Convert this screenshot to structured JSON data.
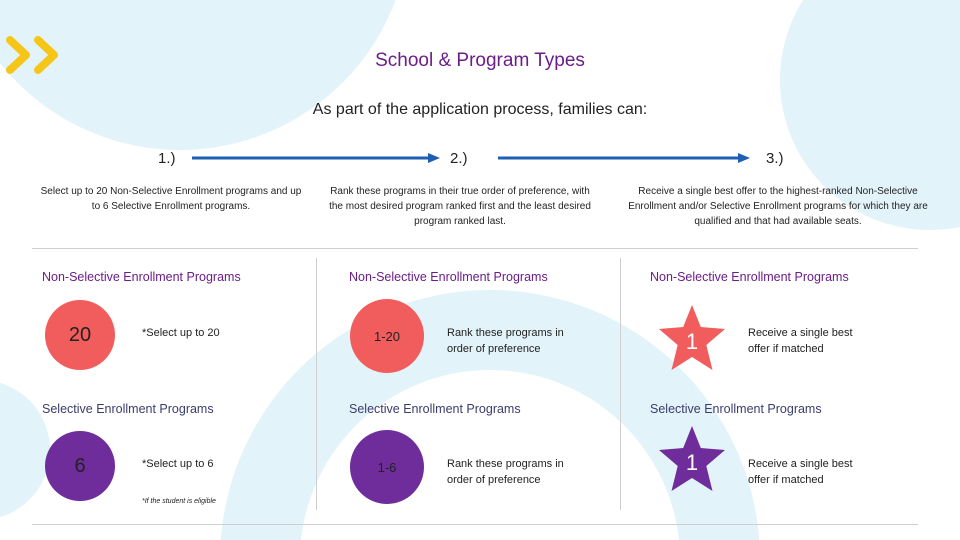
{
  "header": {
    "title": "School & Program Types",
    "subtitle": "As part of the application process, families can:"
  },
  "colors": {
    "purple": "#6b1d8a",
    "red": "#f15c5c",
    "circle_purple": "#6f2c9b",
    "arrow_blue": "#1e5fb4",
    "logo_yellow": "#f5c518",
    "bg_blue": "#e3f3fa"
  },
  "steps": [
    {
      "label": "1.)",
      "description": "Select up to 20 Non-Selective Enrollment programs and up to 6 Selective Enrollment programs."
    },
    {
      "label": "2.)",
      "description": "Rank these programs in their true order of preference, with the most desired program ranked first and the least desired program ranked last."
    },
    {
      "label": "3.)",
      "description": "Receive a single best offer to the highest-ranked Non-Selective Enrollment and/or Selective Enrollment programs for which they are qualified and that had available seats."
    }
  ],
  "columns": [
    {
      "nonselective": {
        "heading": "Non-Selective Enrollment Programs",
        "badge": "20",
        "text": "*Select up to 20"
      },
      "selective": {
        "heading": "Selective Enrollment Programs",
        "badge": "6",
        "text": "*Select up to 6"
      },
      "footnote": "*If the student is eligible"
    },
    {
      "nonselective": {
        "heading": "Non-Selective Enrollment Programs",
        "badge": "1-20",
        "text": "Rank these programs in order of preference"
      },
      "selective": {
        "heading": "Selective Enrollment Programs",
        "badge": "1-6",
        "text": "Rank these programs in order of preference"
      }
    },
    {
      "nonselective": {
        "heading": "Non-Selective Enrollment Programs",
        "badge": "1",
        "text": "Receive a single best offer if matched"
      },
      "selective": {
        "heading": "Selective Enrollment Programs",
        "badge": "1",
        "text": "Receive a single best offer if matched"
      }
    }
  ],
  "logo_icon": "double-chevron-icon"
}
